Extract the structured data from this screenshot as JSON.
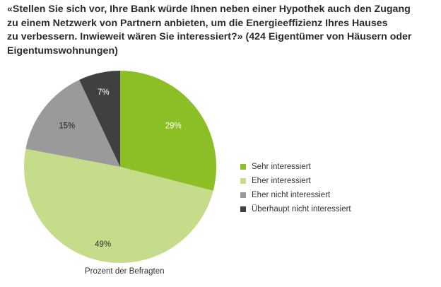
{
  "chart_data": {
    "type": "pie",
    "title": "«Stellen Sie sich vor, Ihre Bank würde Ihnen neben einer Hypothek auch den Zugang zu einem Netzwerk von Partnern anbieten, um die Energieeffizienz Ihres Hauses zu verbessern. Inwieweit wären Sie interessiert?» (424 Eigentümer von Häusern oder Eigentumswohnungen)",
    "title_lines": [
      "«Stellen Sie sich vor, Ihre Bank würde Ihnen neben einer Hypothek auch den Zugang",
      "zu einem Netzwerk von Partnern anbieten, um die Energieeffizienz Ihres Hauses",
      "zu verbessern. Inwieweit wären Sie interessiert?» (424 Eigentümer von Häusern oder",
      "Eigentumswohnungen)"
    ],
    "slices": [
      {
        "label": "Sehr interessiert",
        "value": 29,
        "display": "29%",
        "color": "#8cbf26"
      },
      {
        "label": "Eher interessiert",
        "value": 49,
        "display": "49%",
        "color": "#c5dc8a"
      },
      {
        "label": "Eher nicht interessiert",
        "value": 15,
        "display": "15%",
        "color": "#9a9a9a"
      },
      {
        "label": "Überhaupt nicht interessiert",
        "value": 7,
        "display": "7%",
        "color": "#404040"
      }
    ],
    "legend_position": "right",
    "footnote": "Prozent der Befragten"
  }
}
